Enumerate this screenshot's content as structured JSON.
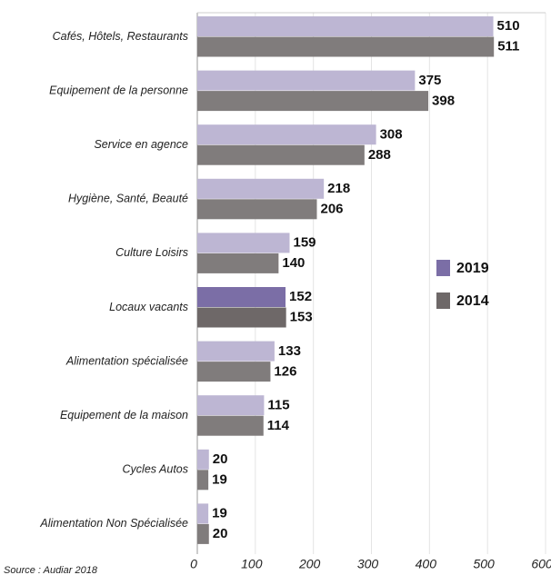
{
  "chart_data": {
    "type": "hbar",
    "categories": [
      "Cafés, Hôtels, Restaurants",
      "Equipement de la personne",
      "Service en agence",
      "Hygiène, Santé, Beauté",
      "Culture Loisirs",
      "Locaux vacants",
      "Alimentation spécialisée",
      "Equipement de la maison",
      "Cycles Autos",
      "Alimentation Non Spécialisée"
    ],
    "series": [
      {
        "name": "2019",
        "color": "#7b6ea6",
        "muted_color": "#bdb6d3",
        "values": [
          510,
          375,
          308,
          218,
          159,
          152,
          133,
          115,
          20,
          19
        ]
      },
      {
        "name": "2014",
        "color": "#6e6868",
        "muted_color": "#807c7c",
        "values": [
          511,
          398,
          288,
          206,
          140,
          153,
          126,
          114,
          19,
          20
        ]
      }
    ],
    "highlight_category": "Locaux vacants",
    "xlim": [
      0,
      600
    ],
    "xticks": [
      0,
      100,
      200,
      300,
      400,
      500,
      600
    ],
    "grid": true,
    "source": "Source : Audiar 2018"
  }
}
